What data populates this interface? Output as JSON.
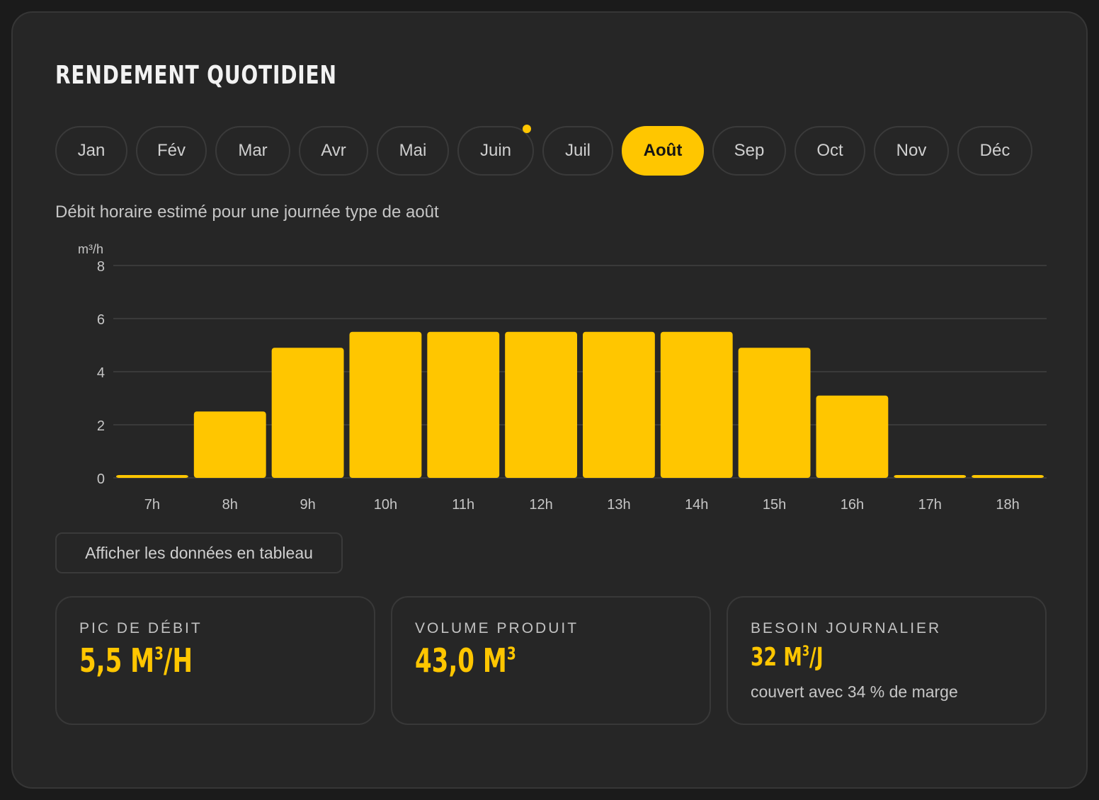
{
  "card": {
    "title": "RENDEMENT QUOTIDIEN",
    "subtitle": "Débit horaire estimé pour une journée type de août"
  },
  "months": [
    {
      "label": "Jan",
      "active": false,
      "dot": false
    },
    {
      "label": "Fév",
      "active": false,
      "dot": false
    },
    {
      "label": "Mar",
      "active": false,
      "dot": false
    },
    {
      "label": "Avr",
      "active": false,
      "dot": false
    },
    {
      "label": "Mai",
      "active": false,
      "dot": false
    },
    {
      "label": "Juin",
      "active": false,
      "dot": true
    },
    {
      "label": "Juil",
      "active": false,
      "dot": false
    },
    {
      "label": "Août",
      "active": true,
      "dot": false
    },
    {
      "label": "Sep",
      "active": false,
      "dot": false
    },
    {
      "label": "Oct",
      "active": false,
      "dot": false
    },
    {
      "label": "Nov",
      "active": false,
      "dot": false
    },
    {
      "label": "Déc",
      "active": false,
      "dot": false
    }
  ],
  "chart_data": {
    "type": "bar",
    "categories": [
      "7h",
      "8h",
      "9h",
      "10h",
      "11h",
      "12h",
      "13h",
      "14h",
      "15h",
      "16h",
      "17h",
      "18h"
    ],
    "values": [
      0.1,
      2.5,
      4.9,
      5.5,
      5.5,
      5.5,
      5.5,
      5.5,
      4.9,
      3.1,
      0.1,
      0.1
    ],
    "ylabel": "m³/h",
    "ylim": [
      0,
      8
    ],
    "yticks": [
      0,
      2,
      4,
      6,
      8
    ],
    "grid": true,
    "bar_color": "#ffc600"
  },
  "table_button": {
    "label": "Afficher les données en tableau"
  },
  "stats": {
    "peak": {
      "label": "PIC DE DÉBIT",
      "value": "5,5 M",
      "exp": "3",
      "suffix": "/H"
    },
    "volume": {
      "label": "VOLUME PRODUIT",
      "value": "43,0 M",
      "exp": "3",
      "suffix": ""
    },
    "need": {
      "label": "BESOIN JOURNALIER",
      "value": "32 M",
      "exp": "3",
      "suffix": "/J",
      "note": "couvert avec 34 % de marge"
    }
  },
  "colors": {
    "accent": "#ffc600",
    "background": "#262626",
    "grid": "#3a3a3a"
  }
}
